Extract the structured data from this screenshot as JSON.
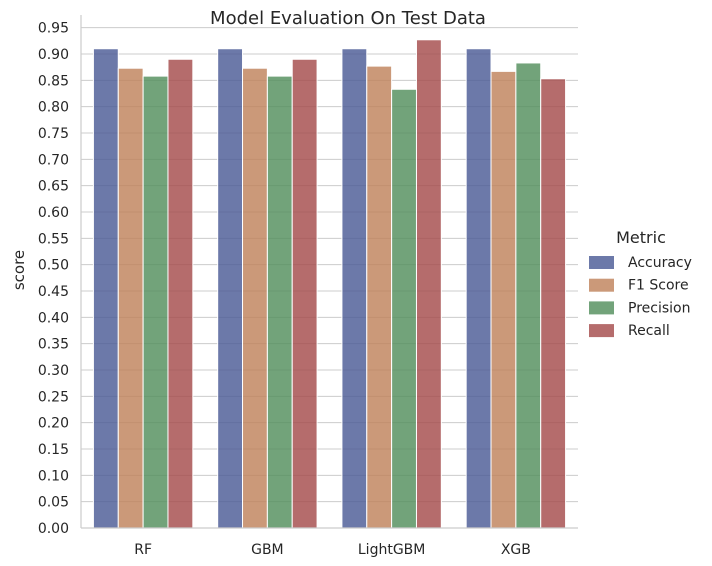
{
  "chart_data": {
    "type": "bar",
    "title": "Model Evaluation On Test Data",
    "xlabel": "",
    "ylabel": "score",
    "categories": [
      "RF",
      "GBM",
      "LightGBM",
      "XGB"
    ],
    "series": [
      {
        "name": "Accuracy",
        "color": "#4c5c96",
        "values": [
          0.91,
          0.91,
          0.91,
          0.91
        ]
      },
      {
        "name": "F1 Score",
        "color": "#c0835c",
        "values": [
          0.873,
          0.873,
          0.877,
          0.867
        ]
      },
      {
        "name": "Precision",
        "color": "#538f5d",
        "values": [
          0.858,
          0.858,
          0.833,
          0.883
        ]
      },
      {
        "name": "Recall",
        "color": "#a54c4c",
        "values": [
          0.89,
          0.89,
          0.927,
          0.853
        ]
      }
    ],
    "ylim": [
      0,
      0.97
    ],
    "yticks": [
      "0.00",
      "0.05",
      "0.10",
      "0.15",
      "0.20",
      "0.25",
      "0.30",
      "0.35",
      "0.40",
      "0.45",
      "0.50",
      "0.55",
      "0.60",
      "0.65",
      "0.70",
      "0.75",
      "0.80",
      "0.85",
      "0.90",
      "0.95"
    ],
    "grid": true,
    "legend": {
      "title": "Metric",
      "placement": "right"
    }
  }
}
